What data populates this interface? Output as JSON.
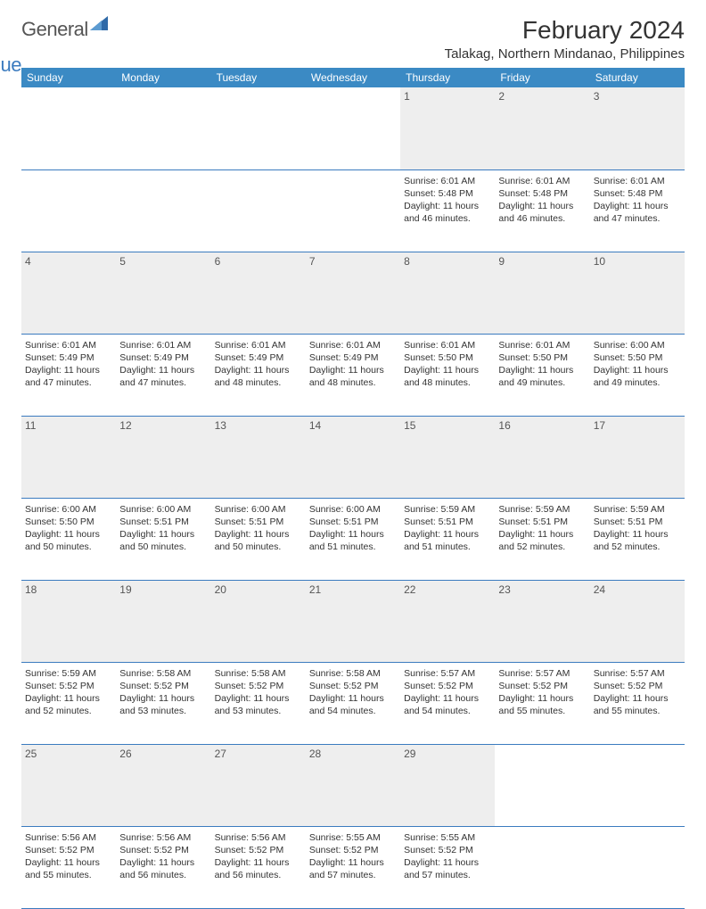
{
  "brand": {
    "text1": "General",
    "text2": "Blue",
    "icon_color": "#2f6aa8"
  },
  "title": "February 2024",
  "location": "Talakag, Northern Mindanao, Philippines",
  "colors": {
    "header_bg": "#3b8ac4",
    "header_text": "#ffffff",
    "daynum_bg": "#eeeeee",
    "rule": "#3b7bbf"
  },
  "daysOfWeek": [
    "Sunday",
    "Monday",
    "Tuesday",
    "Wednesday",
    "Thursday",
    "Friday",
    "Saturday"
  ],
  "weeks": [
    {
      "nums": [
        "",
        "",
        "",
        "",
        "1",
        "2",
        "3"
      ],
      "cells": [
        null,
        null,
        null,
        null,
        {
          "sunrise": "6:01 AM",
          "sunset": "5:48 PM",
          "daylight_h": "11",
          "daylight_m": "46"
        },
        {
          "sunrise": "6:01 AM",
          "sunset": "5:48 PM",
          "daylight_h": "11",
          "daylight_m": "46"
        },
        {
          "sunrise": "6:01 AM",
          "sunset": "5:48 PM",
          "daylight_h": "11",
          "daylight_m": "47"
        }
      ]
    },
    {
      "nums": [
        "4",
        "5",
        "6",
        "7",
        "8",
        "9",
        "10"
      ],
      "cells": [
        {
          "sunrise": "6:01 AM",
          "sunset": "5:49 PM",
          "daylight_h": "11",
          "daylight_m": "47"
        },
        {
          "sunrise": "6:01 AM",
          "sunset": "5:49 PM",
          "daylight_h": "11",
          "daylight_m": "47"
        },
        {
          "sunrise": "6:01 AM",
          "sunset": "5:49 PM",
          "daylight_h": "11",
          "daylight_m": "48"
        },
        {
          "sunrise": "6:01 AM",
          "sunset": "5:49 PM",
          "daylight_h": "11",
          "daylight_m": "48"
        },
        {
          "sunrise": "6:01 AM",
          "sunset": "5:50 PM",
          "daylight_h": "11",
          "daylight_m": "48"
        },
        {
          "sunrise": "6:01 AM",
          "sunset": "5:50 PM",
          "daylight_h": "11",
          "daylight_m": "49"
        },
        {
          "sunrise": "6:00 AM",
          "sunset": "5:50 PM",
          "daylight_h": "11",
          "daylight_m": "49"
        }
      ]
    },
    {
      "nums": [
        "11",
        "12",
        "13",
        "14",
        "15",
        "16",
        "17"
      ],
      "cells": [
        {
          "sunrise": "6:00 AM",
          "sunset": "5:50 PM",
          "daylight_h": "11",
          "daylight_m": "50"
        },
        {
          "sunrise": "6:00 AM",
          "sunset": "5:51 PM",
          "daylight_h": "11",
          "daylight_m": "50"
        },
        {
          "sunrise": "6:00 AM",
          "sunset": "5:51 PM",
          "daylight_h": "11",
          "daylight_m": "50"
        },
        {
          "sunrise": "6:00 AM",
          "sunset": "5:51 PM",
          "daylight_h": "11",
          "daylight_m": "51"
        },
        {
          "sunrise": "5:59 AM",
          "sunset": "5:51 PM",
          "daylight_h": "11",
          "daylight_m": "51"
        },
        {
          "sunrise": "5:59 AM",
          "sunset": "5:51 PM",
          "daylight_h": "11",
          "daylight_m": "52"
        },
        {
          "sunrise": "5:59 AM",
          "sunset": "5:51 PM",
          "daylight_h": "11",
          "daylight_m": "52"
        }
      ]
    },
    {
      "nums": [
        "18",
        "19",
        "20",
        "21",
        "22",
        "23",
        "24"
      ],
      "cells": [
        {
          "sunrise": "5:59 AM",
          "sunset": "5:52 PM",
          "daylight_h": "11",
          "daylight_m": "52"
        },
        {
          "sunrise": "5:58 AM",
          "sunset": "5:52 PM",
          "daylight_h": "11",
          "daylight_m": "53"
        },
        {
          "sunrise": "5:58 AM",
          "sunset": "5:52 PM",
          "daylight_h": "11",
          "daylight_m": "53"
        },
        {
          "sunrise": "5:58 AM",
          "sunset": "5:52 PM",
          "daylight_h": "11",
          "daylight_m": "54"
        },
        {
          "sunrise": "5:57 AM",
          "sunset": "5:52 PM",
          "daylight_h": "11",
          "daylight_m": "54"
        },
        {
          "sunrise": "5:57 AM",
          "sunset": "5:52 PM",
          "daylight_h": "11",
          "daylight_m": "55"
        },
        {
          "sunrise": "5:57 AM",
          "sunset": "5:52 PM",
          "daylight_h": "11",
          "daylight_m": "55"
        }
      ]
    },
    {
      "nums": [
        "25",
        "26",
        "27",
        "28",
        "29",
        "",
        ""
      ],
      "cells": [
        {
          "sunrise": "5:56 AM",
          "sunset": "5:52 PM",
          "daylight_h": "11",
          "daylight_m": "55"
        },
        {
          "sunrise": "5:56 AM",
          "sunset": "5:52 PM",
          "daylight_h": "11",
          "daylight_m": "56"
        },
        {
          "sunrise": "5:56 AM",
          "sunset": "5:52 PM",
          "daylight_h": "11",
          "daylight_m": "56"
        },
        {
          "sunrise": "5:55 AM",
          "sunset": "5:52 PM",
          "daylight_h": "11",
          "daylight_m": "57"
        },
        {
          "sunrise": "5:55 AM",
          "sunset": "5:52 PM",
          "daylight_h": "11",
          "daylight_m": "57"
        },
        null,
        null
      ]
    }
  ],
  "labels": {
    "sunrise": "Sunrise:",
    "sunset": "Sunset:",
    "daylight_prefix": "Daylight:",
    "hours_word": "hours",
    "and_word": "and",
    "minutes_word": "minutes."
  }
}
